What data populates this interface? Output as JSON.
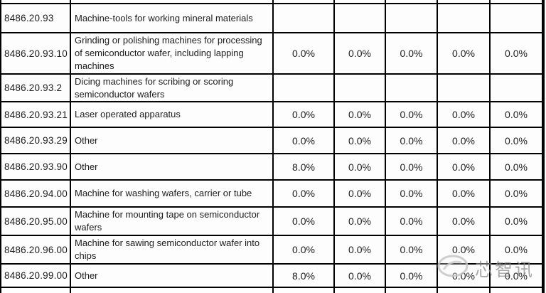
{
  "table": {
    "rows": [
      {
        "code": "8486.20.93",
        "description": "Machine-tools for working mineral materials",
        "rates": [
          "",
          "",
          "",
          "",
          ""
        ]
      },
      {
        "code": "8486.20.93.10",
        "description": "Grinding or polishing machines for processing of semiconductor wafer, including lapping machines",
        "rates": [
          "0.0%",
          "0.0%",
          "0.0%",
          "0.0%",
          "0.0%"
        ]
      },
      {
        "code": "8486.20.93.2",
        "description": "Dicing machines for scribing or scoring semiconductor wafers",
        "rates": [
          "",
          "",
          "",
          "",
          ""
        ]
      },
      {
        "code": "8486.20.93.21",
        "description": "Laser operated apparatus",
        "rates": [
          "0.0%",
          "0.0%",
          "0.0%",
          "0.0%",
          "0.0%"
        ]
      },
      {
        "code": "8486.20.93.29",
        "description": "Other",
        "rates": [
          "0.0%",
          "0.0%",
          "0.0%",
          "0.0%",
          "0.0%"
        ]
      },
      {
        "code": "8486.20.93.90",
        "description": "Other",
        "rates": [
          "8.0%",
          "0.0%",
          "0.0%",
          "0.0%",
          "0.0%"
        ]
      },
      {
        "code": "8486.20.94.00",
        "description": "Machine for washing wafers, carrier or tube",
        "rates": [
          "0.0%",
          "0.0%",
          "0.0%",
          "0.0%",
          "0.0%"
        ]
      },
      {
        "code": "8486.20.95.00",
        "description": "Machine for mounting tape on semiconductor wafers",
        "rates": [
          "0.0%",
          "0.0%",
          "0.0%",
          "0.0%",
          "0.0%"
        ]
      },
      {
        "code": "8486.20.96.00",
        "description": "Machine for sawing semiconductor wafer into chips",
        "rates": [
          "0.0%",
          "0.0%",
          "0.0%",
          "0.0%",
          "0.0%"
        ]
      },
      {
        "code": "8486.20.99.00",
        "description": "Other",
        "rates": [
          "8.0%",
          "0.0%",
          "0.0%",
          "0.0%",
          "0.0%"
        ]
      }
    ]
  },
  "watermark": {
    "text": "芯智讯"
  },
  "colors": {
    "border": "#000000",
    "cell_background": "#fdfdfd",
    "text": "#1c1c1c",
    "watermark": "#8a8a8a"
  }
}
